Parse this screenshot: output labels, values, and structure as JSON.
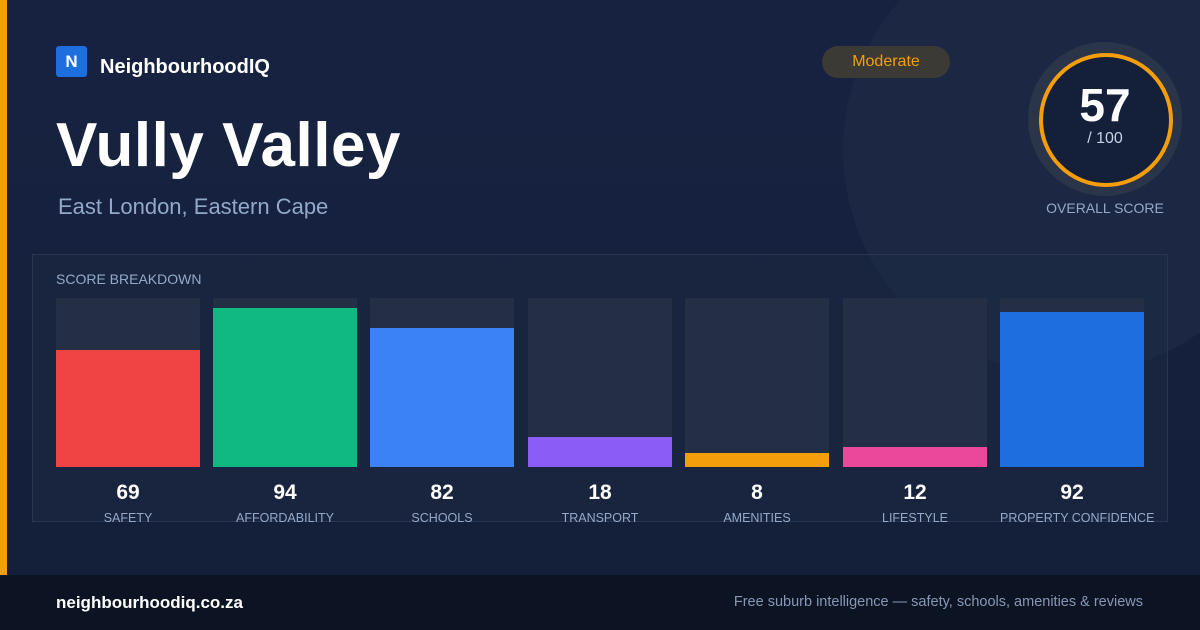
{
  "brand": {
    "logo_letter": "N",
    "name": "NeighbourhoodIQ"
  },
  "suburb": {
    "name": "Vully Valley",
    "location": "East London, Eastern Cape"
  },
  "status": {
    "label": "Moderate",
    "color": "#f59e0b"
  },
  "overall": {
    "score": "57",
    "max": "/ 100",
    "caption": "OVERALL SCORE"
  },
  "breakdown": {
    "title": "SCORE BREAKDOWN",
    "max_score": 100,
    "items": [
      {
        "label": "SAFETY",
        "value": "69",
        "score": 69,
        "color": "#ef4444"
      },
      {
        "label": "AFFORDABILITY",
        "value": "94",
        "score": 94,
        "color": "#10b981"
      },
      {
        "label": "SCHOOLS",
        "value": "82",
        "score": 82,
        "color": "#3b82f6"
      },
      {
        "label": "TRANSPORT",
        "value": "18",
        "score": 18,
        "color": "#8b5cf6"
      },
      {
        "label": "AMENITIES",
        "value": "8",
        "score": 8,
        "color": "#f59e0b"
      },
      {
        "label": "LIFESTYLE",
        "value": "12",
        "score": 12,
        "color": "#ec4899"
      },
      {
        "label": "PROPERTY CONFIDENCE",
        "value": "92",
        "score": 92,
        "color": "#1d6fe0"
      }
    ]
  },
  "footer": {
    "domain": "neighbourhoodiq.co.za",
    "tagline": "Free suburb intelligence — safety, schools, amenities & reviews"
  }
}
